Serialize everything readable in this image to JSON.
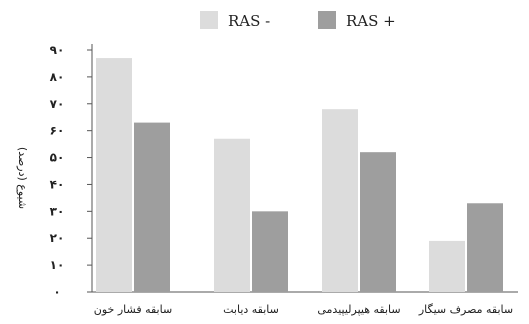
{
  "chart_data": {
    "type": "bar",
    "title": "",
    "xlabel": "",
    "ylabel": "شیوع (درصد)",
    "ylim": [
      0,
      90
    ],
    "yticks": [
      0,
      10,
      20,
      30,
      40,
      50,
      60,
      70,
      80,
      90
    ],
    "ytick_labels": [
      "۰",
      "۱۰",
      "۲۰",
      "۳۰",
      "۴۰",
      "۵۰",
      "۶۰",
      "۷۰",
      "۸۰",
      "۹۰"
    ],
    "grid": false,
    "legend_position": "top-center",
    "categories": [
      "سابقه فشار خون",
      "سابقه دیابت",
      "سابقه هیپرلیپیدمی",
      "سابقه مصرف سیگار"
    ],
    "series": [
      {
        "name": "RAS -",
        "color": "#dcdcdc",
        "values": [
          87,
          57,
          68,
          19
        ]
      },
      {
        "name": "RAS +",
        "color": "#9e9e9e",
        "values": [
          63,
          30,
          52,
          33
        ]
      }
    ]
  }
}
